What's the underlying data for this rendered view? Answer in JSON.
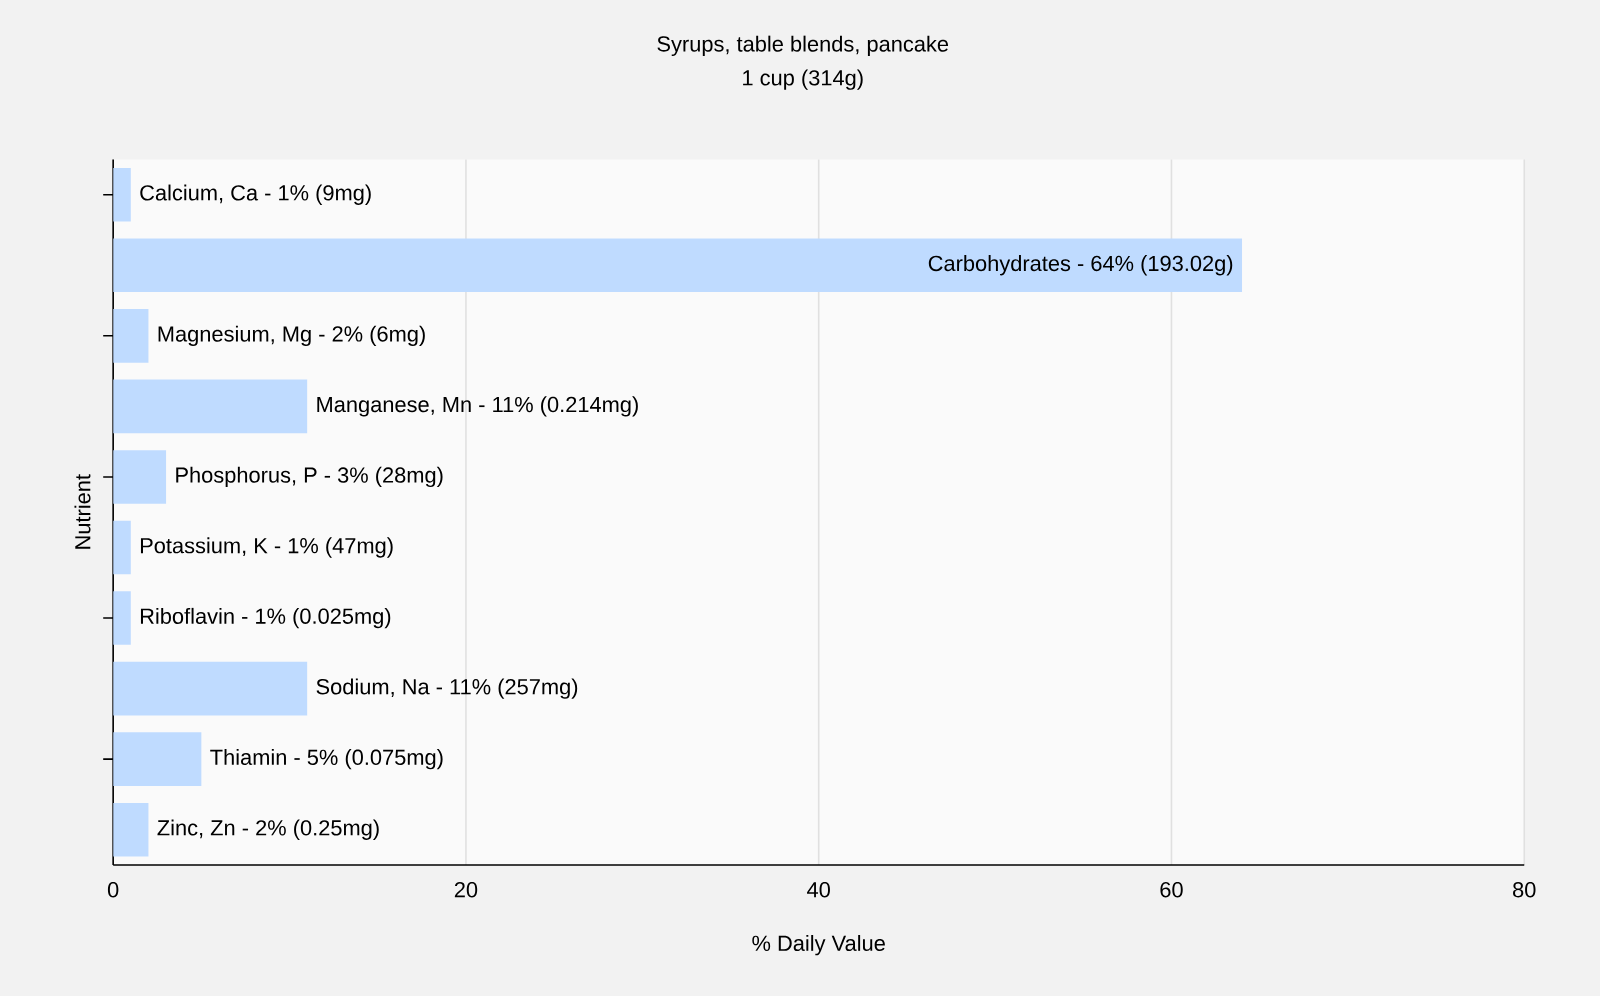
{
  "chart_data": {
    "type": "bar",
    "orientation": "horizontal",
    "title": "Syrups, table blends, pancake",
    "subtitle": "1 cup (314g)",
    "xlabel": "% Daily Value",
    "ylabel": "Nutrient",
    "categories": [
      "Calcium, Ca - 1% (9mg)",
      "Carbohydrates - 64% (193.02g)",
      "Magnesium, Mg - 2% (6mg)",
      "Manganese, Mn - 11% (0.214mg)",
      "Phosphorus, P - 3% (28mg)",
      "Potassium, K - 1% (47mg)",
      "Riboflavin - 1% (0.025mg)",
      "Sodium, Na - 11% (257mg)",
      "Thiamin - 5% (0.075mg)",
      "Zinc, Zn - 2% (0.25mg)"
    ],
    "values": [
      1,
      64,
      2,
      11,
      3,
      1,
      1,
      11,
      5,
      2
    ],
    "color": "#bfdbff",
    "xlim": [
      0,
      80
    ],
    "xticks": [
      0,
      20,
      40,
      60,
      80
    ],
    "grid": "x",
    "tick_labels": "x"
  }
}
